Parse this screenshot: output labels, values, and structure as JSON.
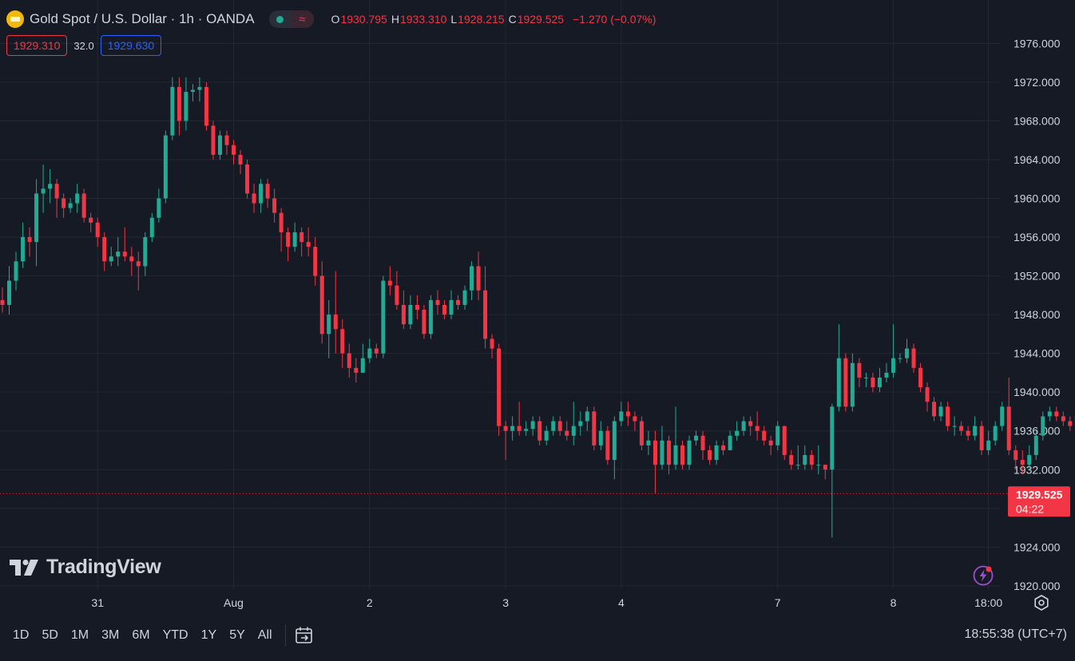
{
  "header": {
    "symbol": "Gold Spot / U.S. Dollar · 1h · OANDA",
    "open_key": "O",
    "open": "1930.795",
    "high_key": "H",
    "high": "1933.310",
    "low_key": "L",
    "low": "1928.215",
    "close_key": "C",
    "close": "1929.525",
    "change": "−1.270 (−0.07%)"
  },
  "trade": {
    "sell": "1929.310",
    "spread": "32.0",
    "buy": "1929.630"
  },
  "last_price": {
    "value": "1929.525",
    "countdown": "04:22"
  },
  "ranges": [
    "1D",
    "5D",
    "1M",
    "3M",
    "6M",
    "YTD",
    "1Y",
    "5Y",
    "All"
  ],
  "clock": "18:55:38 (UTC+7)",
  "watermark": "TradingView",
  "colors": {
    "up": "#22ab94",
    "down": "#f23645",
    "background": "#161a25",
    "grid": "#242833",
    "text": "#d1d4dc"
  },
  "icons": [
    "gold-symbol-icon",
    "market-open-icon",
    "delay-wave-icon",
    "goto-date-icon",
    "lightning-icon",
    "settings-icon",
    "tradingview-logo-icon"
  ],
  "chart_data": {
    "type": "candlestick",
    "title": "Gold Spot / U.S. Dollar · 1h · OANDA",
    "y_ticks": [
      1920,
      1924,
      1928,
      1932,
      1936,
      1940,
      1944,
      1948,
      1952,
      1956,
      1960,
      1964,
      1968,
      1972,
      1976
    ],
    "ylim": [
      1919,
      1978.5
    ],
    "x_labels": [
      "31",
      "Aug",
      "2",
      "3",
      "4",
      "7",
      "8",
      "18:00"
    ],
    "x_label_bars": [
      14,
      34,
      54,
      74,
      91,
      114,
      131,
      145
    ],
    "grid": true,
    "last_price": 1929.525,
    "candles": [
      [
        1949.5,
        1949.0,
        1948.2,
        1950.8
      ],
      [
        1949.0,
        1951.5,
        1948.0,
        1953.0
      ],
      [
        1951.5,
        1953.5,
        1950.5,
        1954.5
      ],
      [
        1953.5,
        1956.0,
        1952.8,
        1957.5
      ],
      [
        1956.0,
        1955.5,
        1954.0,
        1957.0
      ],
      [
        1955.5,
        1960.5,
        1953.0,
        1962.0
      ],
      [
        1960.5,
        1961.0,
        1958.5,
        1963.5
      ],
      [
        1961.0,
        1961.5,
        1959.5,
        1963.0
      ],
      [
        1961.5,
        1960.0,
        1958.0,
        1962.0
      ],
      [
        1960.0,
        1959.0,
        1958.0,
        1960.5
      ],
      [
        1959.0,
        1959.5,
        1958.5,
        1960.0
      ],
      [
        1959.5,
        1960.5,
        1958.5,
        1961.5
      ],
      [
        1960.5,
        1958.0,
        1957.5,
        1961.0
      ],
      [
        1958.0,
        1957.5,
        1956.5,
        1958.5
      ],
      [
        1957.5,
        1956.0,
        1955.0,
        1958.0
      ],
      [
        1956.0,
        1953.5,
        1952.5,
        1956.5
      ],
      [
        1953.5,
        1954.0,
        1953.0,
        1955.0
      ],
      [
        1954.0,
        1954.5,
        1953.0,
        1956.0
      ],
      [
        1954.5,
        1954.0,
        1953.5,
        1957.0
      ],
      [
        1954.0,
        1953.5,
        1952.0,
        1955.0
      ],
      [
        1953.5,
        1953.0,
        1950.5,
        1954.5
      ],
      [
        1953.0,
        1956.0,
        1952.0,
        1956.5
      ],
      [
        1956.0,
        1958.0,
        1955.5,
        1958.5
      ],
      [
        1958.0,
        1960.0,
        1957.5,
        1961.0
      ],
      [
        1960.0,
        1966.5,
        1959.5,
        1967.0
      ],
      [
        1966.5,
        1971.5,
        1966.0,
        1972.5
      ],
      [
        1971.5,
        1968.0,
        1966.5,
        1972.5
      ],
      [
        1968.0,
        1971.0,
        1967.0,
        1972.5
      ],
      [
        1971.0,
        1971.2,
        1970.0,
        1971.8
      ],
      [
        1971.2,
        1971.5,
        1970.0,
        1972.5
      ],
      [
        1971.5,
        1967.5,
        1967.0,
        1972.0
      ],
      [
        1967.5,
        1964.5,
        1964.0,
        1968.0
      ],
      [
        1964.5,
        1966.5,
        1964.0,
        1967.0
      ],
      [
        1966.5,
        1965.5,
        1964.5,
        1967.0
      ],
      [
        1965.5,
        1964.5,
        1963.5,
        1966.0
      ],
      [
        1964.5,
        1963.5,
        1962.5,
        1965.0
      ],
      [
        1963.5,
        1960.5,
        1960.0,
        1964.0
      ],
      [
        1960.5,
        1959.5,
        1958.5,
        1961.5
      ],
      [
        1959.5,
        1961.5,
        1958.5,
        1962.0
      ],
      [
        1961.5,
        1960.0,
        1959.0,
        1962.0
      ],
      [
        1960.0,
        1958.5,
        1957.5,
        1961.0
      ],
      [
        1958.5,
        1956.5,
        1954.5,
        1959.0
      ],
      [
        1956.5,
        1955.0,
        1953.5,
        1957.0
      ],
      [
        1955.0,
        1956.5,
        1954.5,
        1957.5
      ],
      [
        1956.5,
        1955.5,
        1954.0,
        1957.0
      ],
      [
        1955.5,
        1955.0,
        1954.0,
        1957.0
      ],
      [
        1955.0,
        1952.0,
        1951.0,
        1956.0
      ],
      [
        1952.0,
        1946.0,
        1945.0,
        1953.5
      ],
      [
        1946.0,
        1948.0,
        1943.5,
        1949.5
      ],
      [
        1948.0,
        1946.5,
        1944.0,
        1952.5
      ],
      [
        1946.5,
        1944.0,
        1942.5,
        1947.5
      ],
      [
        1944.0,
        1942.5,
        1941.5,
        1945.0
      ],
      [
        1942.5,
        1942.0,
        1941.0,
        1943.5
      ],
      [
        1942.0,
        1943.5,
        1942.0,
        1945.0
      ],
      [
        1943.5,
        1944.5,
        1943.0,
        1945.5
      ],
      [
        1944.5,
        1944.0,
        1943.5,
        1945.0
      ],
      [
        1944.0,
        1951.5,
        1943.5,
        1952.0
      ],
      [
        1951.5,
        1951.0,
        1950.0,
        1953.0
      ],
      [
        1951.0,
        1949.0,
        1948.5,
        1952.5
      ],
      [
        1949.0,
        1947.0,
        1946.5,
        1950.5
      ],
      [
        1947.0,
        1949.0,
        1946.5,
        1950.0
      ],
      [
        1949.0,
        1948.5,
        1947.5,
        1950.0
      ],
      [
        1948.5,
        1946.0,
        1945.5,
        1949.0
      ],
      [
        1946.0,
        1949.5,
        1945.5,
        1950.0
      ],
      [
        1949.5,
        1949.0,
        1948.0,
        1950.5
      ],
      [
        1949.0,
        1948.0,
        1947.5,
        1949.5
      ],
      [
        1948.0,
        1949.5,
        1947.5,
        1950.5
      ],
      [
        1949.5,
        1949.0,
        1948.5,
        1950.0
      ],
      [
        1949.0,
        1950.5,
        1948.5,
        1951.0
      ],
      [
        1950.5,
        1953.0,
        1949.5,
        1953.5
      ],
      [
        1953.0,
        1950.5,
        1949.5,
        1954.5
      ],
      [
        1950.5,
        1945.5,
        1944.5,
        1953.0
      ],
      [
        1945.5,
        1944.5,
        1943.5,
        1946.0
      ],
      [
        1944.5,
        1936.5,
        1935.5,
        1945.0
      ],
      [
        1936.5,
        1936.0,
        1933.0,
        1937.0
      ],
      [
        1936.0,
        1936.5,
        1935.0,
        1937.5
      ],
      [
        1936.5,
        1936.0,
        1935.5,
        1939.0
      ],
      [
        1936.0,
        1936.2,
        1935.5,
        1937.0
      ],
      [
        1936.2,
        1937.0,
        1935.5,
        1937.5
      ],
      [
        1937.0,
        1935.0,
        1934.5,
        1937.5
      ],
      [
        1935.0,
        1936.0,
        1934.5,
        1936.5
      ],
      [
        1936.0,
        1937.0,
        1935.5,
        1937.5
      ],
      [
        1937.0,
        1936.0,
        1935.5,
        1937.5
      ],
      [
        1936.0,
        1935.5,
        1935.0,
        1937.0
      ],
      [
        1935.5,
        1936.5,
        1934.5,
        1939.0
      ],
      [
        1936.5,
        1937.0,
        1935.5,
        1938.0
      ],
      [
        1937.0,
        1938.0,
        1936.0,
        1938.5
      ],
      [
        1938.0,
        1934.5,
        1934.0,
        1938.5
      ],
      [
        1934.5,
        1936.0,
        1934.0,
        1937.0
      ],
      [
        1936.0,
        1933.0,
        1932.5,
        1936.5
      ],
      [
        1933.0,
        1937.0,
        1931.0,
        1937.5
      ],
      [
        1937.0,
        1938.0,
        1936.5,
        1939.0
      ],
      [
        1938.0,
        1937.5,
        1936.5,
        1939.0
      ],
      [
        1937.5,
        1937.0,
        1936.0,
        1938.0
      ],
      [
        1937.0,
        1934.5,
        1934.0,
        1937.5
      ],
      [
        1934.5,
        1935.0,
        1933.5,
        1936.0
      ],
      [
        1935.0,
        1932.5,
        1929.5,
        1936.0
      ],
      [
        1932.5,
        1935.0,
        1932.0,
        1936.5
      ],
      [
        1935.0,
        1932.5,
        1931.5,
        1935.5
      ],
      [
        1932.5,
        1934.5,
        1932.0,
        1938.5
      ],
      [
        1934.5,
        1932.5,
        1932.0,
        1935.0
      ],
      [
        1932.5,
        1935.0,
        1932.0,
        1935.5
      ],
      [
        1935.0,
        1935.5,
        1934.5,
        1936.0
      ],
      [
        1935.5,
        1934.0,
        1933.0,
        1936.0
      ],
      [
        1934.0,
        1933.0,
        1932.5,
        1934.5
      ],
      [
        1933.0,
        1934.5,
        1932.5,
        1935.0
      ],
      [
        1934.5,
        1934.0,
        1933.5,
        1935.0
      ],
      [
        1934.0,
        1935.5,
        1934.0,
        1936.0
      ],
      [
        1935.5,
        1936.0,
        1935.0,
        1937.0
      ],
      [
        1936.0,
        1937.0,
        1935.5,
        1937.5
      ],
      [
        1937.0,
        1936.5,
        1935.5,
        1937.5
      ],
      [
        1936.5,
        1936.0,
        1935.0,
        1938.0
      ],
      [
        1936.0,
        1935.0,
        1934.5,
        1936.5
      ],
      [
        1935.0,
        1934.5,
        1933.5,
        1935.5
      ],
      [
        1934.5,
        1936.5,
        1934.0,
        1937.0
      ],
      [
        1936.5,
        1933.5,
        1933.0,
        1936.5
      ],
      [
        1933.5,
        1932.5,
        1932.0,
        1934.0
      ],
      [
        1932.5,
        1932.5,
        1932.0,
        1934.5
      ],
      [
        1932.5,
        1933.5,
        1932.0,
        1934.5
      ],
      [
        1933.5,
        1932.5,
        1932.0,
        1934.0
      ],
      [
        1932.5,
        1932.5,
        1931.5,
        1934.5
      ],
      [
        1932.5,
        1932.0,
        1931.0,
        1932.5
      ],
      [
        1932.0,
        1938.5,
        1925.0,
        1938.8
      ],
      [
        1938.5,
        1943.5,
        1938.0,
        1947.0
      ],
      [
        1943.5,
        1938.5,
        1938.0,
        1944.0
      ],
      [
        1938.5,
        1943.0,
        1938.0,
        1944.0
      ],
      [
        1943.0,
        1941.5,
        1940.5,
        1943.5
      ],
      [
        1941.5,
        1941.5,
        1940.5,
        1942.0
      ],
      [
        1941.5,
        1940.5,
        1940.0,
        1942.0
      ],
      [
        1940.5,
        1941.5,
        1940.0,
        1942.5
      ],
      [
        1941.5,
        1942.0,
        1941.0,
        1943.0
      ],
      [
        1942.0,
        1943.5,
        1941.5,
        1947.0
      ],
      [
        1943.5,
        1943.5,
        1943.0,
        1944.0
      ],
      [
        1943.5,
        1944.5,
        1943.0,
        1945.5
      ],
      [
        1944.5,
        1942.5,
        1942.0,
        1945.0
      ],
      [
        1942.5,
        1940.5,
        1940.0,
        1943.0
      ],
      [
        1940.5,
        1939.0,
        1938.0,
        1941.0
      ],
      [
        1939.0,
        1937.5,
        1937.0,
        1939.5
      ],
      [
        1937.5,
        1938.5,
        1937.0,
        1939.0
      ],
      [
        1938.5,
        1936.5,
        1936.0,
        1939.0
      ],
      [
        1936.5,
        1936.5,
        1935.5,
        1937.5
      ],
      [
        1936.5,
        1936.0,
        1935.5,
        1937.0
      ],
      [
        1936.0,
        1935.5,
        1935.0,
        1936.5
      ],
      [
        1935.5,
        1936.5,
        1935.0,
        1937.5
      ],
      [
        1936.5,
        1934.0,
        1933.5,
        1937.0
      ],
      [
        1934.0,
        1935.0,
        1933.5,
        1936.0
      ],
      [
        1935.0,
        1936.5,
        1934.5,
        1937.0
      ],
      [
        1936.5,
        1938.5,
        1936.0,
        1939.0
      ],
      [
        1938.5,
        1934.0,
        1933.5,
        1941.5
      ],
      [
        1934.0,
        1933.0,
        1932.0,
        1934.5
      ],
      [
        1933.0,
        1932.5,
        1931.5,
        1934.0
      ],
      [
        1932.5,
        1933.5,
        1932.0,
        1934.5
      ],
      [
        1933.5,
        1935.5,
        1933.0,
        1936.0
      ],
      [
        1935.5,
        1937.5,
        1935.0,
        1938.0
      ],
      [
        1937.5,
        1938.0,
        1937.0,
        1938.5
      ],
      [
        1938.0,
        1937.5,
        1937.0,
        1938.5
      ],
      [
        1937.5,
        1937.0,
        1936.5,
        1938.0
      ],
      [
        1937.0,
        1936.5,
        1936.0,
        1937.5
      ],
      [
        1936.5,
        1937.5,
        1936.0,
        1938.0
      ],
      [
        1937.5,
        1936.5,
        1935.5,
        1938.0
      ],
      [
        1936.5,
        1935.5,
        1934.5,
        1937.0
      ],
      [
        1935.5,
        1931.5,
        1931.0,
        1936.0
      ],
      [
        1931.5,
        1935.0,
        1931.0,
        1935.5
      ],
      [
        1935.0,
        1934.0,
        1933.5,
        1935.5
      ],
      [
        1934.0,
        1934.5,
        1933.5,
        1935.0
      ],
      [
        1934.5,
        1934.0,
        1933.0,
        1935.0
      ],
      [
        1934.0,
        1934.5,
        1933.5,
        1935.0
      ],
      [
        1934.5,
        1932.5,
        1932.0,
        1935.0
      ],
      [
        1932.5,
        1931.0,
        1930.5,
        1935.0
      ],
      [
        1931.0,
        1935.0,
        1930.5,
        1935.5
      ],
      [
        1935.0,
        1935.0,
        1933.0,
        1935.5
      ],
      [
        1935.0,
        1930.8,
        1930.0,
        1935.5
      ],
      [
        1930.8,
        1929.5,
        1928.2,
        1933.3
      ]
    ]
  }
}
